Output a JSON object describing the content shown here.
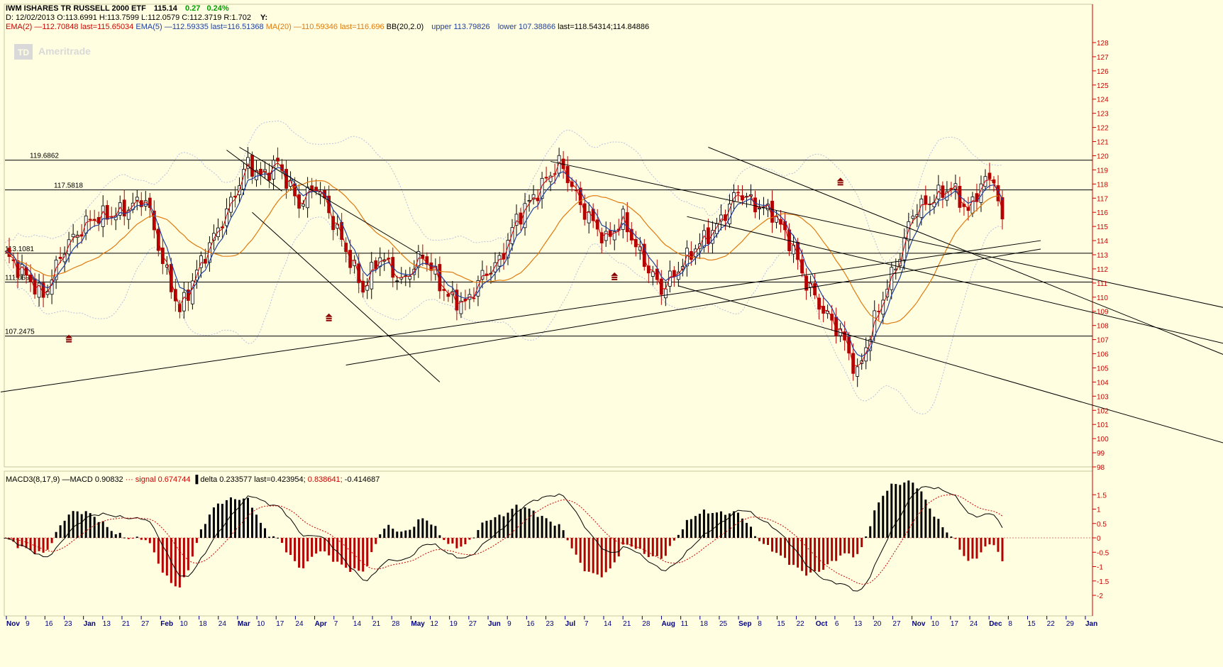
{
  "header": {
    "title": "IWM ISHARES TR RUSSELL 2000 ETF",
    "last": "115.14",
    "change": "0.27",
    "change_pct": "0.24%",
    "ohlc": "D: 12/02/2013 O:113.6991 H:113.7599 L:112.0579 C:112.3719 R:1.702",
    "ohlc_y": "Y:",
    "indicators": {
      "ema2": "EMA(2) —112.70848 last=115.65034",
      "ema5": "EMA(5) —112.59335 last=116.51368",
      "ma20": "MA(20) —110.59346 last=116.696",
      "bb": "BB(20,2.0)",
      "bb_upper": "upper 113.79826",
      "bb_lower": "lower 107.38866",
      "bb_last": "last=118.54314;114.84886"
    },
    "watermark": "Ameritrade",
    "watermark_logo": "TD"
  },
  "macd_header": {
    "macd": "MACD3(8,17,9) —MACD 0.90832",
    "signal": "··· signal 0.674744",
    "delta": "▐ delta 0.233577 last=0.423954;",
    "last_red": "0.838641;",
    "last_end": "-0.414687"
  },
  "colors": {
    "background": "#fffee0",
    "up_candle": "#ffffff",
    "down_candle": "#b30000",
    "ema2": "#cc0000",
    "ema5": "#2040a0",
    "ma20": "#e07a10",
    "bollinger": "#b8c0e0",
    "macd_positive": "#000000",
    "macd_negative": "#b30000",
    "axis_text": "#cc0000",
    "date_text": "#000080"
  },
  "chart_data": {
    "type": "candlestick",
    "price_axis": {
      "ylim": [
        97,
        129
      ],
      "ticks": [
        "98",
        "99",
        "100",
        "101",
        "102",
        "103",
        "104",
        "105",
        "106",
        "107",
        "108",
        "109",
        "110",
        "111",
        "112",
        "113",
        "114",
        "115",
        "116",
        "117",
        "118",
        "119",
        "120",
        "121",
        "122",
        "123",
        "124",
        "125",
        "126",
        "127",
        "128"
      ]
    },
    "macd_axis": {
      "ylim": [
        -2,
        1.6
      ],
      "ticks": [
        "1.5",
        "1",
        "0.5",
        "0",
        "-0.5",
        "-1",
        "-1.5",
        "-2"
      ]
    },
    "x_labels": [
      {
        "label": "Nov",
        "bold": true
      },
      {
        "label": "9"
      },
      {
        "label": "16"
      },
      {
        "label": "23"
      },
      {
        "label": "Jan",
        "bold": true
      },
      {
        "label": "13"
      },
      {
        "label": "21"
      },
      {
        "label": "27"
      },
      {
        "label": "Feb",
        "bold": true
      },
      {
        "label": "10"
      },
      {
        "label": "18"
      },
      {
        "label": "24"
      },
      {
        "label": "Mar",
        "bold": true
      },
      {
        "label": "10"
      },
      {
        "label": "17"
      },
      {
        "label": "24"
      },
      {
        "label": "Apr",
        "bold": true
      },
      {
        "label": "7"
      },
      {
        "label": "14"
      },
      {
        "label": "21"
      },
      {
        "label": "28"
      },
      {
        "label": "May",
        "bold": true
      },
      {
        "label": "12"
      },
      {
        "label": "19"
      },
      {
        "label": "27"
      },
      {
        "label": "Jun",
        "bold": true
      },
      {
        "label": "9"
      },
      {
        "label": "16"
      },
      {
        "label": "23"
      },
      {
        "label": "Jul",
        "bold": true
      },
      {
        "label": "7"
      },
      {
        "label": "14"
      },
      {
        "label": "21"
      },
      {
        "label": "28"
      },
      {
        "label": "Aug",
        "bold": true
      },
      {
        "label": "11"
      },
      {
        "label": "18"
      },
      {
        "label": "25"
      },
      {
        "label": "Sep",
        "bold": true
      },
      {
        "label": "8"
      },
      {
        "label": "15"
      },
      {
        "label": "22"
      },
      {
        "label": "Oct",
        "bold": true
      },
      {
        "label": "6"
      },
      {
        "label": "13"
      },
      {
        "label": "20"
      },
      {
        "label": "27"
      },
      {
        "label": "Nov",
        "bold": true
      },
      {
        "label": "10"
      },
      {
        "label": "17"
      },
      {
        "label": "24"
      },
      {
        "label": "Dec",
        "bold": true
      },
      {
        "label": "8"
      },
      {
        "label": "15"
      },
      {
        "label": "22"
      },
      {
        "label": "29"
      },
      {
        "label": "Jan",
        "bold": true
      }
    ],
    "levels": [
      {
        "label": "119.6862",
        "value": 119.6862
      },
      {
        "label": "117.5818",
        "value": 117.5818
      },
      {
        "label": "113.1081",
        "value": 113.1081
      },
      {
        "label": "111.0696",
        "value": 111.0696
      },
      {
        "label": "107.2475",
        "value": 107.2475
      }
    ],
    "anchors": [
      {
        "day": 0,
        "price": 113.0
      },
      {
        "day": 5,
        "price": 111.5
      },
      {
        "day": 9,
        "price": 110.0
      },
      {
        "day": 14,
        "price": 113.5
      },
      {
        "day": 20,
        "price": 115.5
      },
      {
        "day": 27,
        "price": 116.0
      },
      {
        "day": 33,
        "price": 117.0
      },
      {
        "day": 37,
        "price": 112.5
      },
      {
        "day": 41,
        "price": 109.0
      },
      {
        "day": 46,
        "price": 112.5
      },
      {
        "day": 52,
        "price": 116.0
      },
      {
        "day": 57,
        "price": 119.5
      },
      {
        "day": 60,
        "price": 118.5
      },
      {
        "day": 64,
        "price": 119.5
      },
      {
        "day": 69,
        "price": 116.5
      },
      {
        "day": 73,
        "price": 118.0
      },
      {
        "day": 79,
        "price": 114.0
      },
      {
        "day": 84,
        "price": 110.5
      },
      {
        "day": 88,
        "price": 113.0
      },
      {
        "day": 93,
        "price": 111.0
      },
      {
        "day": 98,
        "price": 113.0
      },
      {
        "day": 104,
        "price": 110.0
      },
      {
        "day": 108,
        "price": 109.5
      },
      {
        "day": 112,
        "price": 111.5
      },
      {
        "day": 116,
        "price": 112.5
      },
      {
        "day": 120,
        "price": 115.5
      },
      {
        "day": 125,
        "price": 117.5
      },
      {
        "day": 130,
        "price": 119.5
      },
      {
        "day": 132,
        "price": 118.5
      },
      {
        "day": 135,
        "price": 116.5
      },
      {
        "day": 141,
        "price": 114.0
      },
      {
        "day": 145,
        "price": 115.5
      },
      {
        "day": 149,
        "price": 113.0
      },
      {
        "day": 154,
        "price": 110.5
      },
      {
        "day": 158,
        "price": 112.0
      },
      {
        "day": 162,
        "price": 113.5
      },
      {
        "day": 167,
        "price": 115.0
      },
      {
        "day": 172,
        "price": 117.5
      },
      {
        "day": 176,
        "price": 116.5
      },
      {
        "day": 180,
        "price": 116.0
      },
      {
        "day": 184,
        "price": 114.0
      },
      {
        "day": 188,
        "price": 111.0
      },
      {
        "day": 192,
        "price": 109.0
      },
      {
        "day": 196,
        "price": 107.5
      },
      {
        "day": 200,
        "price": 104.5
      },
      {
        "day": 203,
        "price": 107.5
      },
      {
        "day": 206,
        "price": 110.0
      },
      {
        "day": 210,
        "price": 113.0
      },
      {
        "day": 213,
        "price": 116.0
      },
      {
        "day": 218,
        "price": 117.0
      },
      {
        "day": 222,
        "price": 117.8
      },
      {
        "day": 226,
        "price": 116.0
      },
      {
        "day": 229,
        "price": 118.0
      },
      {
        "day": 232,
        "price": 118.5
      },
      {
        "day": 234,
        "price": 115.0
      }
    ],
    "trendlines": [
      {
        "from": [
          -1,
          103.3
        ],
        "to": [
          243,
          114.0
        ]
      },
      {
        "from": [
          80,
          105.2
        ],
        "to": [
          243,
          113.4
        ]
      },
      {
        "from": [
          128,
          119.6
        ],
        "to": [
          316,
          107.3
        ]
      },
      {
        "from": [
          52,
          120.4
        ],
        "to": [
          65,
          117.5
        ]
      },
      {
        "from": [
          55,
          120.6
        ],
        "to": [
          98,
          112.9
        ]
      },
      {
        "from": [
          58,
          116.0
        ],
        "to": [
          102,
          104.0
        ]
      },
      {
        "from": [
          165,
          120.6
        ],
        "to": [
          320,
          101.8
        ]
      },
      {
        "from": [
          160,
          115.7
        ],
        "to": [
          320,
          104.3
        ]
      },
      {
        "from": [
          158,
          110.8
        ],
        "to": [
          310,
          97.6
        ]
      }
    ],
    "markers": [
      {
        "day": 15,
        "price": 107.1
      },
      {
        "day": 76,
        "price": 108.6
      },
      {
        "day": 143,
        "price": 111.5
      },
      {
        "day": 196,
        "price": 118.2
      }
    ],
    "days_total": 234
  }
}
